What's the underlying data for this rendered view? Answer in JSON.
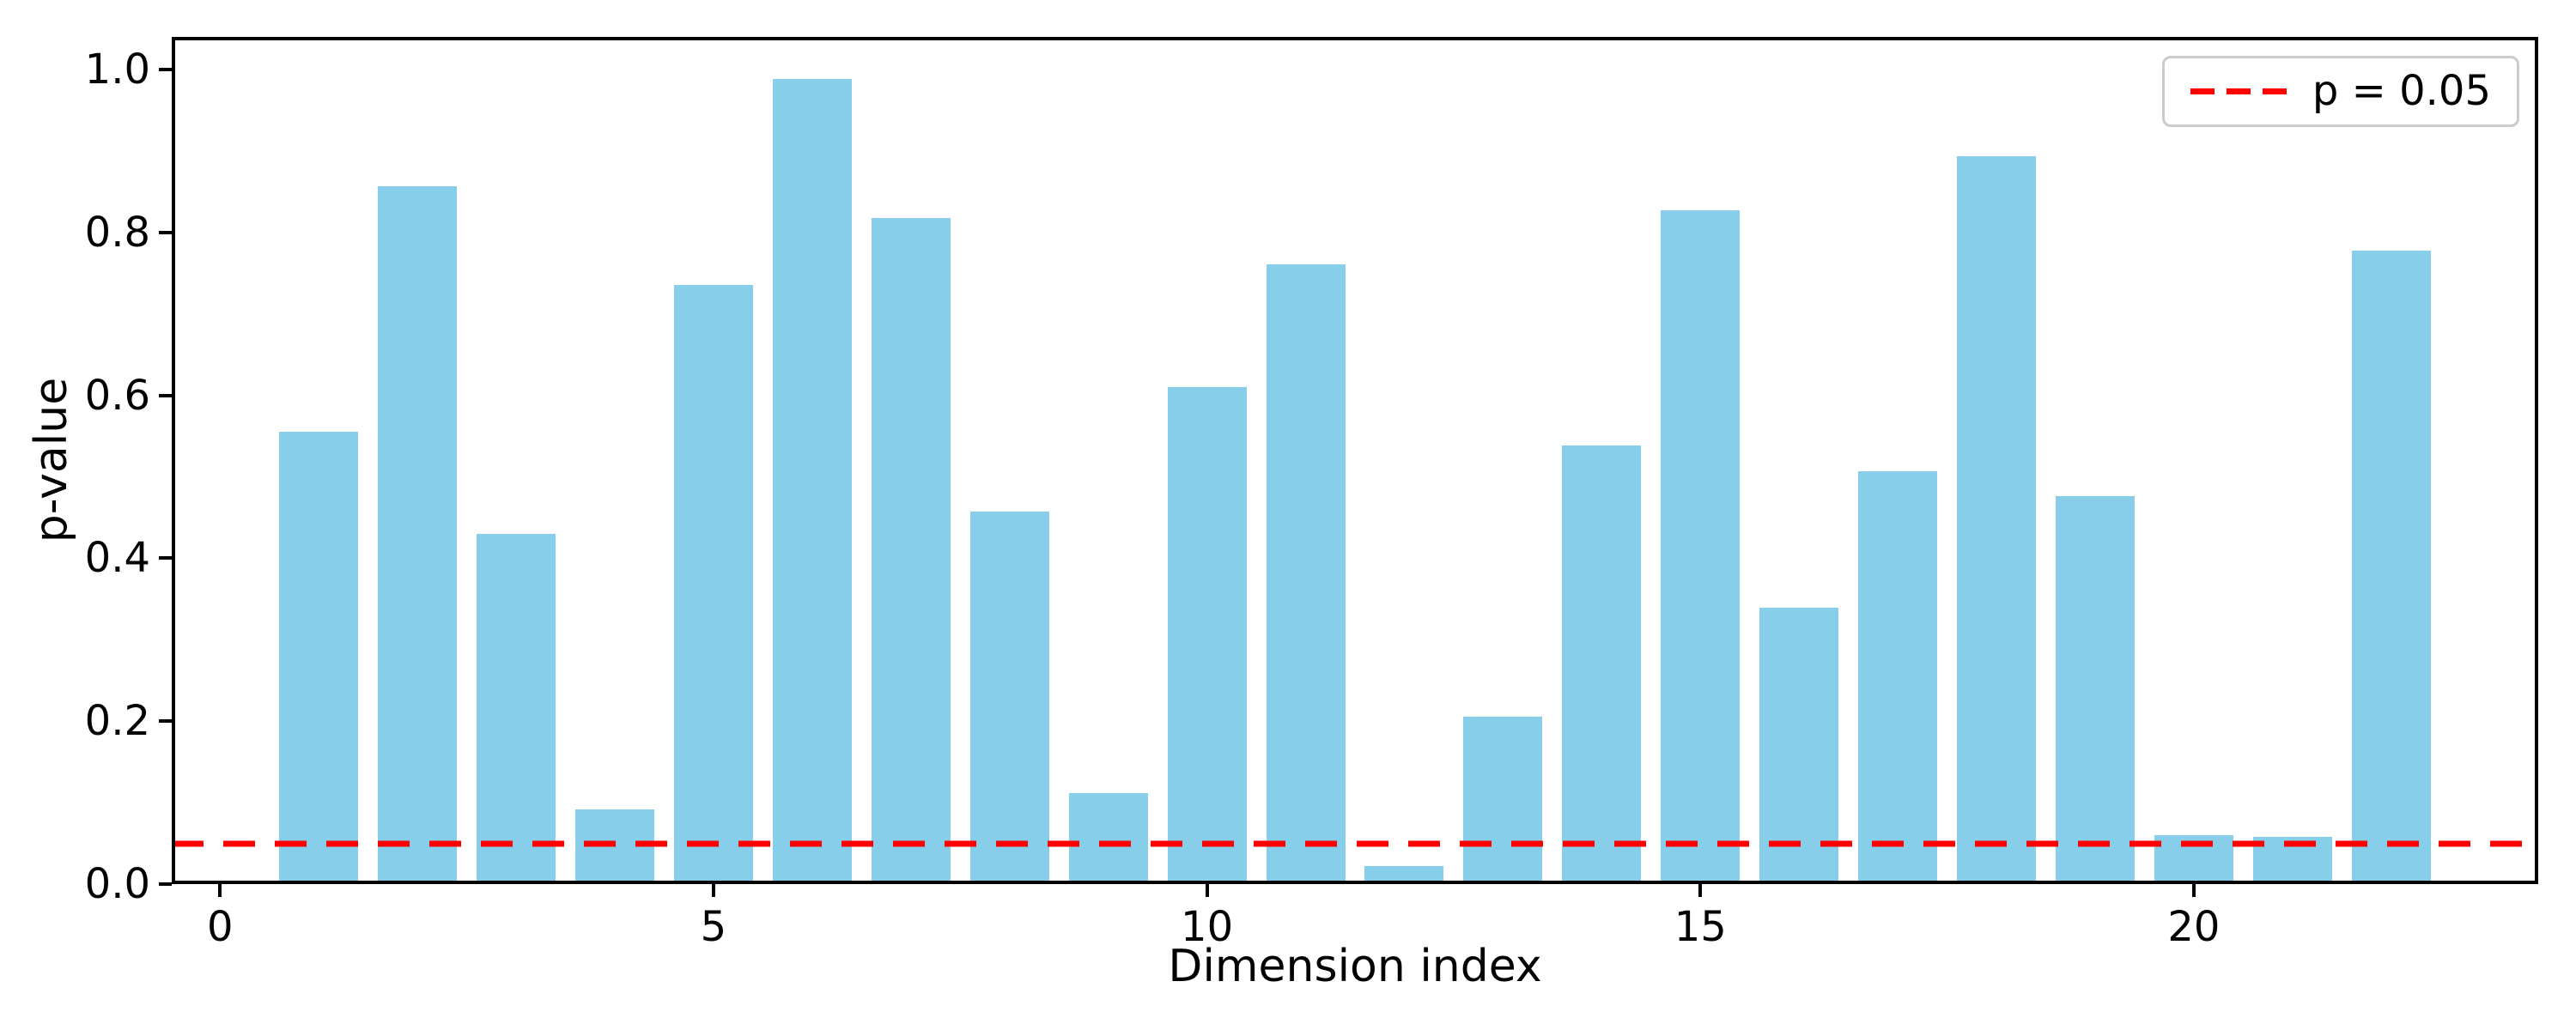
{
  "figure": {
    "background": "#ffffff",
    "text_color": "#000000"
  },
  "chart_data": {
    "type": "bar",
    "title": "",
    "xlabel": "Dimension index",
    "ylabel": "p-value",
    "x": [
      1,
      2,
      3,
      4,
      5,
      6,
      7,
      8,
      9,
      10,
      11,
      12,
      13,
      14,
      15,
      16,
      17,
      18,
      19,
      20,
      21,
      22
    ],
    "values": [
      0.555,
      0.857,
      0.43,
      0.092,
      0.735,
      0.988,
      0.818,
      0.457,
      0.112,
      0.61,
      0.761,
      0.022,
      0.206,
      0.538,
      0.827,
      0.339,
      0.507,
      0.894,
      0.476,
      0.06,
      0.058,
      0.778
    ],
    "bar_color": "#87CEEB",
    "bar_width": 0.8,
    "xlim": [
      -0.49,
      23.49
    ],
    "ylim": [
      0,
      1.04
    ],
    "xticks": [
      "0",
      "5",
      "10",
      "15",
      "20"
    ],
    "yticks": [
      "0.0",
      "0.2",
      "0.4",
      "0.6",
      "0.8",
      "1.0"
    ],
    "grid": false,
    "threshold_line": {
      "y": 0.05,
      "color": "#ff0000",
      "style": "dashed",
      "label": "p = 0.05"
    },
    "legend": {
      "position": "upper right",
      "entries": [
        {
          "label": "p = 0.05",
          "color": "#ff0000",
          "line_style": "dashed"
        }
      ]
    }
  }
}
